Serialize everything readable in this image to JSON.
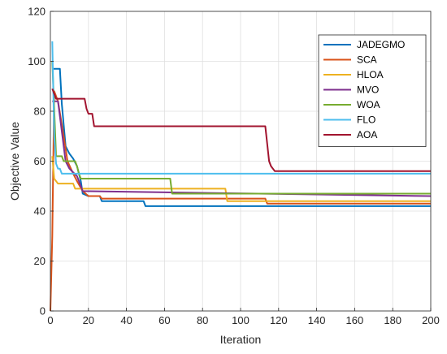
{
  "chart_data": {
    "type": "line",
    "title": "",
    "xlabel": "Iteration",
    "ylabel": "Objective Value",
    "xlim": [
      0,
      200
    ],
    "ylim": [
      0,
      120
    ],
    "xticks": [
      0,
      20,
      40,
      60,
      80,
      100,
      120,
      140,
      160,
      180,
      200
    ],
    "yticks": [
      0,
      20,
      40,
      60,
      80,
      100,
      120
    ],
    "grid": true,
    "legend_position": "top-right",
    "series": [
      {
        "name": "JADEGMO",
        "color": "#0072bd",
        "points": [
          [
            1,
            97
          ],
          [
            5,
            97
          ],
          [
            6,
            83
          ],
          [
            8,
            66
          ],
          [
            10,
            63
          ],
          [
            12,
            61
          ],
          [
            14,
            58
          ],
          [
            16,
            52
          ],
          [
            17,
            47
          ],
          [
            20,
            46
          ],
          [
            26,
            46
          ],
          [
            27,
            44
          ],
          [
            49,
            44
          ],
          [
            50,
            42
          ],
          [
            200,
            42
          ]
        ]
      },
      {
        "name": "SCA",
        "color": "#d95319",
        "points": [
          [
            0,
            0
          ],
          [
            1,
            30
          ],
          [
            2,
            88
          ],
          [
            4,
            84
          ],
          [
            7,
            70
          ],
          [
            9,
            60
          ],
          [
            12,
            55
          ],
          [
            14,
            52
          ],
          [
            17,
            48
          ],
          [
            20,
            46
          ],
          [
            26,
            46
          ],
          [
            27,
            45
          ],
          [
            113,
            45
          ],
          [
            114,
            43
          ],
          [
            115,
            43
          ],
          [
            200,
            43
          ]
        ]
      },
      {
        "name": "HLOA",
        "color": "#edb120",
        "points": [
          [
            1,
            62
          ],
          [
            2,
            53
          ],
          [
            4,
            51
          ],
          [
            12,
            51
          ],
          [
            13,
            49
          ],
          [
            92,
            49
          ],
          [
            93,
            44
          ],
          [
            200,
            44
          ]
        ]
      },
      {
        "name": "MVO",
        "color": "#7e2f8e",
        "points": [
          [
            1,
            84
          ],
          [
            4,
            84
          ],
          [
            6,
            72
          ],
          [
            8,
            60
          ],
          [
            10,
            57
          ],
          [
            14,
            54
          ],
          [
            16,
            50
          ],
          [
            17,
            48
          ],
          [
            200,
            46
          ]
        ]
      },
      {
        "name": "WOA",
        "color": "#77ac30",
        "points": [
          [
            1,
            100
          ],
          [
            3,
            62
          ],
          [
            6,
            62
          ],
          [
            7,
            60
          ],
          [
            13,
            60
          ],
          [
            14,
            58
          ],
          [
            15,
            55
          ],
          [
            16,
            53
          ],
          [
            63,
            53
          ],
          [
            64,
            47
          ],
          [
            200,
            47
          ]
        ]
      },
      {
        "name": "FLO",
        "color": "#4dbeee",
        "points": [
          [
            1,
            108
          ],
          [
            2,
            70
          ],
          [
            3,
            59
          ],
          [
            4,
            57
          ],
          [
            5,
            57
          ],
          [
            6,
            55
          ],
          [
            200,
            55
          ]
        ]
      },
      {
        "name": "AOA",
        "color": "#a2142f",
        "points": [
          [
            1,
            89
          ],
          [
            3,
            85
          ],
          [
            18,
            85
          ],
          [
            19,
            81
          ],
          [
            20,
            79
          ],
          [
            22,
            79
          ],
          [
            23,
            74
          ],
          [
            113,
            74
          ],
          [
            115,
            60
          ],
          [
            116,
            58
          ],
          [
            118,
            56
          ],
          [
            200,
            56
          ]
        ]
      }
    ]
  }
}
